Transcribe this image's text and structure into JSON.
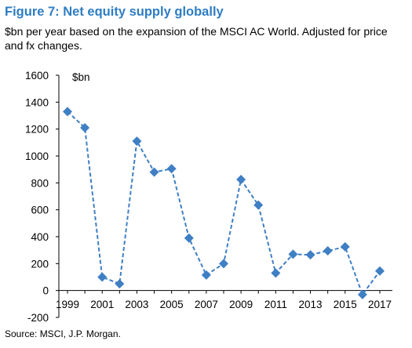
{
  "title": "Figure 7: Net equity supply globally",
  "subtitle": "$bn per year based on the expansion of the MSCI AC World. Adjusted for price and fx changes.",
  "source": "Source: MSCI, J.P. Morgan.",
  "colors": {
    "title": "#2e7dc2",
    "series": "#3f7fc4",
    "axis": "#000000"
  },
  "chart_data": {
    "type": "line",
    "title": "Figure 7: Net equity supply globally",
    "subtitle": "$bn per year based on the expansion of the MSCI AC World. Adjusted for price and fx changes.",
    "unit_label": "$bn",
    "xlabel": "",
    "ylabel": "",
    "ylim": [
      -200,
      1600
    ],
    "yticks": [
      -200,
      0,
      200,
      400,
      600,
      800,
      1000,
      1200,
      1400,
      1600
    ],
    "xticks": [
      1999,
      2001,
      2003,
      2005,
      2007,
      2009,
      2011,
      2013,
      2015,
      2017
    ],
    "grid": false,
    "legend": "none",
    "marker": "diamond",
    "line_style": "dashed",
    "x": [
      1999,
      2000,
      2001,
      2002,
      2003,
      2004,
      2005,
      2006,
      2007,
      2008,
      2009,
      2010,
      2011,
      2012,
      2013,
      2014,
      2015,
      2016,
      2017
    ],
    "y": [
      1330,
      1210,
      100,
      50,
      1110,
      880,
      905,
      390,
      115,
      200,
      825,
      635,
      130,
      270,
      265,
      295,
      325,
      -30,
      145
    ]
  }
}
